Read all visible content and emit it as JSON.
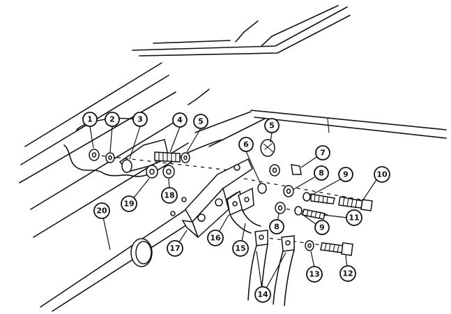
{
  "diagram": {
    "callouts": [
      {
        "label": "1"
      },
      {
        "label": "2"
      },
      {
        "label": "3"
      },
      {
        "label": "4"
      },
      {
        "label": "5"
      },
      {
        "label": "5"
      },
      {
        "label": "6"
      },
      {
        "label": "7"
      },
      {
        "label": "8"
      },
      {
        "label": "9"
      },
      {
        "label": "10"
      },
      {
        "label": "8"
      },
      {
        "label": "9"
      },
      {
        "label": "11"
      },
      {
        "label": "12"
      },
      {
        "label": "13"
      },
      {
        "label": "14"
      },
      {
        "label": "15"
      },
      {
        "label": "16"
      },
      {
        "label": "17"
      },
      {
        "label": "18"
      },
      {
        "label": "19"
      },
      {
        "label": "20"
      }
    ]
  }
}
